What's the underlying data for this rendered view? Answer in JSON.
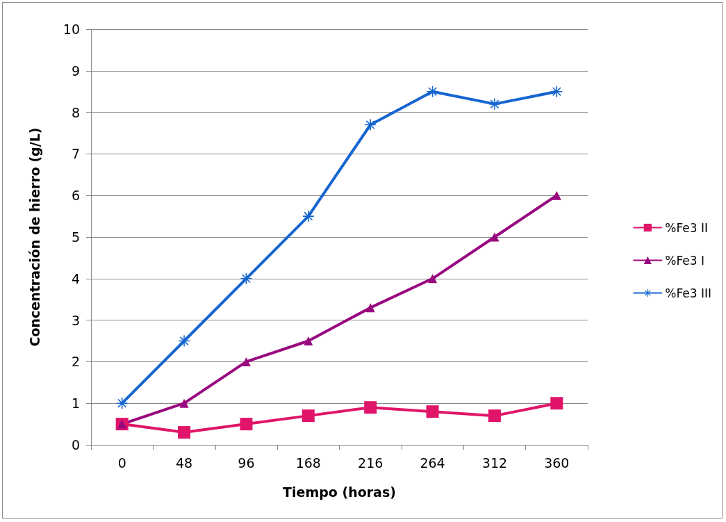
{
  "chart_data": {
    "type": "line",
    "xlabel": "Tiempo (horas)",
    "ylabel": "Concentración de hierro (g/L)",
    "categories": [
      "0",
      "48",
      "96",
      "168",
      "216",
      "264",
      "312",
      "360"
    ],
    "series": [
      {
        "name": "%Fe3 II",
        "color": "#e0156a",
        "marker": "square",
        "values": [
          0.5,
          0.3,
          0.5,
          0.7,
          0.9,
          0.8,
          0.7,
          1.0
        ]
      },
      {
        "name": "%Fe3 I",
        "color": "#99077f",
        "marker": "triangle",
        "values": [
          0.5,
          1,
          2,
          2.5,
          3.3,
          4,
          5,
          6
        ]
      },
      {
        "name": "%Fe3 III",
        "color": "#1565d0",
        "marker": "star",
        "values": [
          1,
          2.5,
          4,
          5.5,
          7.7,
          8.5,
          8.2,
          8.5
        ]
      }
    ],
    "ylim": [
      0,
      10
    ],
    "yticks": [
      0,
      1,
      2,
      3,
      4,
      5,
      6,
      7,
      8,
      9,
      10
    ],
    "grid": "y",
    "legend": "right",
    "line_style": "solid"
  }
}
